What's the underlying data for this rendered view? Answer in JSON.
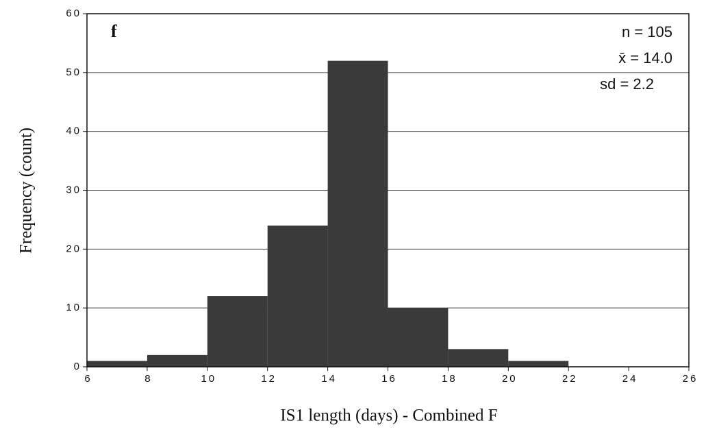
{
  "chart_data": {
    "type": "histogram",
    "bins": [
      6,
      8,
      10,
      12,
      14,
      16,
      18,
      20,
      22
    ],
    "counts": [
      1,
      2,
      12,
      24,
      52,
      10,
      3,
      1
    ],
    "color": "#3a3a3a",
    "xlim": [
      6,
      26
    ],
    "xticks": [
      6,
      8,
      10,
      12,
      14,
      16,
      18,
      20,
      22,
      24,
      26
    ],
    "ylim": [
      0,
      60
    ],
    "yticks": [
      0,
      10,
      20,
      30,
      40,
      50,
      60
    ],
    "grid": true,
    "xlabel": "IS1 length (days) - Combined F",
    "ylabel": "Frequency (count)",
    "annotations": [
      "f",
      "n = 105",
      "x̄ = 14.0",
      "sd = 2.2"
    ]
  }
}
